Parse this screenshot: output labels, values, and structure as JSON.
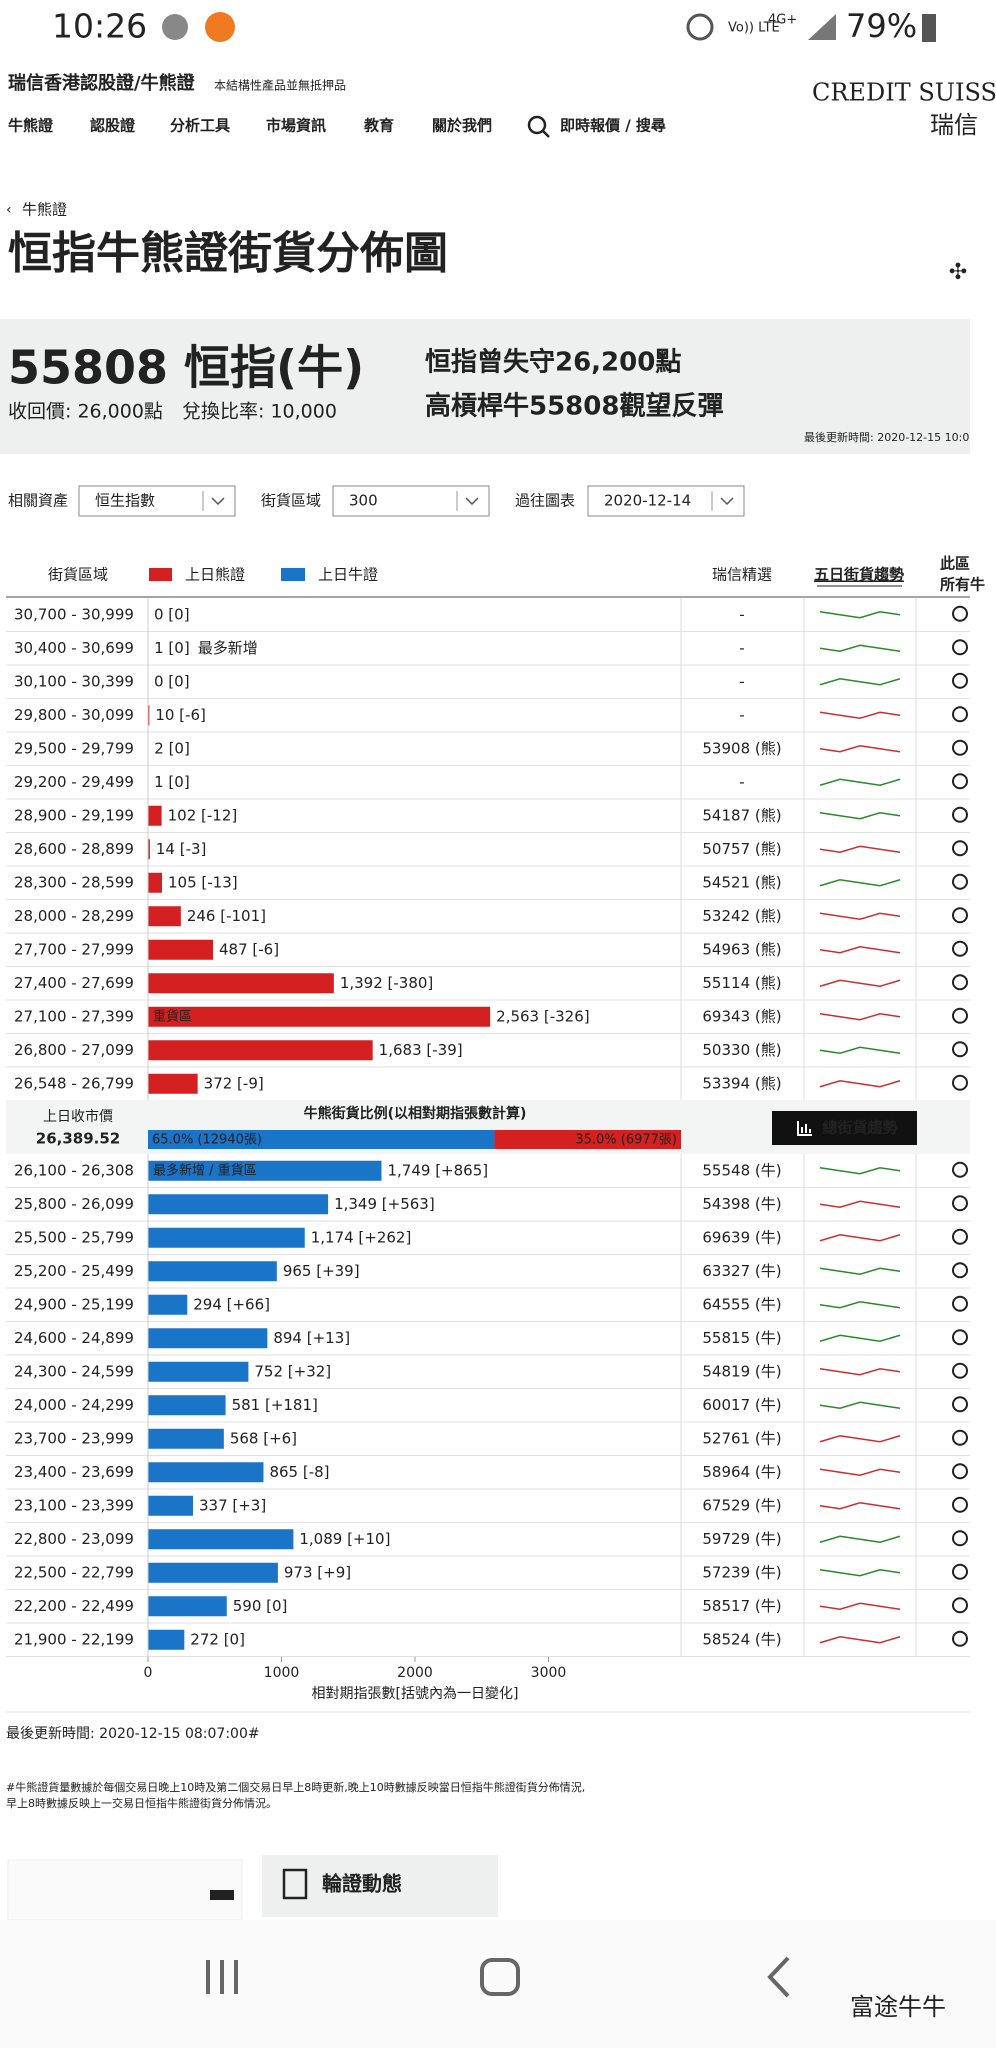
{
  "status_bar": {
    "time": "10:26",
    "signal": "Vo)) LTE",
    "network": "4G+",
    "battery": "79%"
  },
  "header": {
    "site_title": "瑞信香港認股證/牛熊證",
    "disclaimer": "本結構性產品並無抵押品",
    "logo_en": "CREDIT SUISS",
    "logo_zh": "瑞信"
  },
  "nav": [
    "牛熊證",
    "認股證",
    "分析工具",
    "市場資訊",
    "教育",
    "關於我們",
    "即時報價 / 搜尋"
  ],
  "breadcrumb": "牛熊證",
  "title": "恒指牛熊證街貨分佈圖",
  "product": {
    "code_name": "55808 恒指(牛)",
    "call_price": "收回價: 26,000點",
    "ratio": "兌換比率: 10,000",
    "headline": [
      "恒指曾失守26,200點",
      "高槓桿牛55808觀望反彈"
    ],
    "updated": "最後更新時間: 2020-12-15 10:0"
  },
  "filters": [
    {
      "label": "相關資產",
      "value": "恒生指數"
    },
    {
      "label": "街貨區域",
      "value": "300"
    },
    {
      "label": "過往圖表",
      "value": "2020-12-14"
    }
  ],
  "table": {
    "col_range": "街貨區域",
    "legend_bear": "上日熊證",
    "legend_bull": "上日牛證",
    "col_pick": "瑞信精選",
    "col_trend": "五日街貨趨勢",
    "col_all": [
      "此區",
      "所有牛"
    ],
    "bear_color": "#d42020",
    "bull_color": "#1a74c8",
    "xlim": [
      0,
      4000
    ],
    "xticks": [
      0,
      1000,
      2000,
      3000
    ],
    "axis_title": "相對期指張數[括號內為一日變化]",
    "bear_rows": [
      {
        "range": "30,700 - 30,999",
        "value": 0,
        "value_label": "0 [0]",
        "product": "-",
        "trend_color": "#2a8a2a"
      },
      {
        "range": "30,400 - 30,699",
        "value": 1,
        "value_label": "1 [0]",
        "note": "最多新增",
        "product": "-",
        "trend_color": "#2a8a2a"
      },
      {
        "range": "30,100 - 30,399",
        "value": 0,
        "value_label": "0 [0]",
        "product": "-",
        "trend_color": "#2a8a2a"
      },
      {
        "range": "29,800 - 30,099",
        "value": 10,
        "value_label": "10 [-6]",
        "product": "-",
        "trend_color": "#c83030"
      },
      {
        "range": "29,500 - 29,799",
        "value": 2,
        "value_label": "2 [0]",
        "product": "53908 (熊)",
        "trend_color": "#c83030"
      },
      {
        "range": "29,200 - 29,499",
        "value": 1,
        "value_label": "1 [0]",
        "product": "-",
        "trend_color": "#2a8a2a"
      },
      {
        "range": "28,900 - 29,199",
        "value": 102,
        "value_label": "102 [-12]",
        "product": "54187 (熊)",
        "trend_color": "#2a8a2a"
      },
      {
        "range": "28,600 - 28,899",
        "value": 14,
        "value_label": "14 [-3]",
        "product": "50757 (熊)",
        "trend_color": "#c83030"
      },
      {
        "range": "28,300 - 28,599",
        "value": 105,
        "value_label": "105 [-13]",
        "product": "54521 (熊)",
        "trend_color": "#2a8a2a"
      },
      {
        "range": "28,000 - 28,299",
        "value": 246,
        "value_label": "246 [-101]",
        "product": "53242 (熊)",
        "trend_color": "#c83030"
      },
      {
        "range": "27,700 - 27,999",
        "value": 487,
        "value_label": "487 [-6]",
        "product": "54963 (熊)",
        "trend_color": "#c83030"
      },
      {
        "range": "27,400 - 27,699",
        "value": 1392,
        "value_label": "1,392 [-380]",
        "product": "55114 (熊)",
        "trend_color": "#c83030"
      },
      {
        "range": "27,100 - 27,399",
        "value": 2563,
        "value_label": "2,563 [-326]",
        "bar_note": "重貨區",
        "product": "69343 (熊)",
        "trend_color": "#c83030"
      },
      {
        "range": "26,800 - 27,099",
        "value": 1683,
        "value_label": "1,683 [-39]",
        "product": "50330 (熊)",
        "trend_color": "#2a8a2a"
      },
      {
        "range": "26,548 - 26,799",
        "value": 372,
        "value_label": "372 [-9]",
        "product": "53394 (熊)",
        "trend_color": "#c83030"
      }
    ],
    "bull_rows": [
      {
        "range": "26,100 - 26,308",
        "value": 1749,
        "value_label": "1,749 [+865]",
        "bar_note": "最多新增 / 重貨區",
        "product": "55548 (牛)",
        "trend_color": "#2a8a2a"
      },
      {
        "range": "25,800 - 26,099",
        "value": 1349,
        "value_label": "1,349 [+563]",
        "product": "54398 (牛)",
        "trend_color": "#c83030"
      },
      {
        "range": "25,500 - 25,799",
        "value": 1174,
        "value_label": "1,174 [+262]",
        "product": "69639 (牛)",
        "trend_color": "#c83030"
      },
      {
        "range": "25,200 - 25,499",
        "value": 965,
        "value_label": "965 [+39]",
        "product": "63327 (牛)",
        "trend_color": "#2a8a2a"
      },
      {
        "range": "24,900 - 25,199",
        "value": 294,
        "value_label": "294 [+66]",
        "product": "64555 (牛)",
        "trend_color": "#2a8a2a"
      },
      {
        "range": "24,600 - 24,899",
        "value": 894,
        "value_label": "894 [+13]",
        "product": "55815 (牛)",
        "trend_color": "#2a8a2a"
      },
      {
        "range": "24,300 - 24,599",
        "value": 752,
        "value_label": "752 [+32]",
        "product": "54819 (牛)",
        "trend_color": "#c83030"
      },
      {
        "range": "24,000 - 24,299",
        "value": 581,
        "value_label": "581 [+181]",
        "product": "60017 (牛)",
        "trend_color": "#2a8a2a"
      },
      {
        "range": "23,700 - 23,999",
        "value": 568,
        "value_label": "568 [+6]",
        "product": "52761 (牛)",
        "trend_color": "#c83030"
      },
      {
        "range": "23,400 - 23,699",
        "value": 865,
        "value_label": "865 [-8]",
        "product": "58964 (牛)",
        "trend_color": "#c83030"
      },
      {
        "range": "23,100 - 23,399",
        "value": 337,
        "value_label": "337 [+3]",
        "product": "67529 (牛)",
        "trend_color": "#c83030"
      },
      {
        "range": "22,800 - 23,099",
        "value": 1089,
        "value_label": "1,089 [+10]",
        "product": "59729 (牛)",
        "trend_color": "#2a8a2a"
      },
      {
        "range": "22,500 - 22,799",
        "value": 973,
        "value_label": "973 [+9]",
        "product": "57239 (牛)",
        "trend_color": "#2a8a2a"
      },
      {
        "range": "22,200 - 22,499",
        "value": 590,
        "value_label": "590 [0]",
        "product": "58517 (牛)",
        "trend_color": "#c83030"
      },
      {
        "range": "21,900 - 22,199",
        "value": 272,
        "value_label": "272 [0]",
        "product": "58524 (牛)",
        "trend_color": "#c83030"
      }
    ]
  },
  "middle": {
    "close_label": "上日收市價",
    "close_value": "26,389.52",
    "ratio_title": "牛熊街貨比例(以相對期指張數計算)",
    "ratio": [
      {
        "value": 65.0,
        "label": "65.0% (12940張)",
        "color": "#1a74c8"
      },
      {
        "value": 35.0,
        "label": "35.0% (6977張)",
        "color": "#d42020"
      }
    ],
    "button": "總街貨趨勢"
  },
  "footer": {
    "updated": "最後更新時間: 2020-12-15 08:07:00#",
    "notes": [
      "#牛熊證貨量數據於每個交易日晚上10時及第二個交易日早上8時更新,晚上10時數據反映當日恒指牛熊證街貨分佈情況,",
      "早上8時數據反映上一交易日恒指牛熊證街貨分佈情況。"
    ],
    "card": "輪證動態",
    "watermark": "富途牛牛"
  }
}
